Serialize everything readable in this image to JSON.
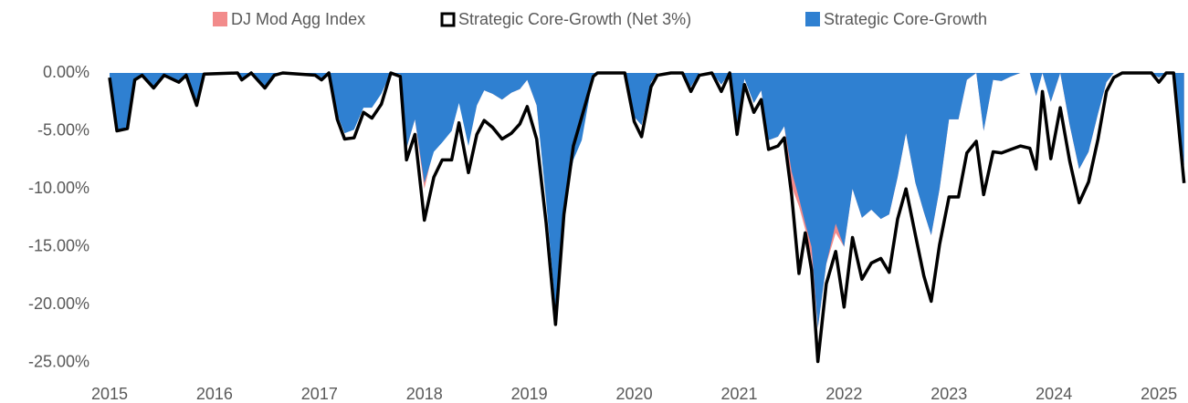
{
  "chart_data": {
    "type": "drawdown",
    "x": [
      2015.0,
      2015.07,
      2015.17,
      2015.24,
      2015.31,
      2015.42,
      2015.52,
      2015.66,
      2015.73,
      2015.83,
      2015.9,
      2016.22,
      2016.26,
      2016.35,
      2016.48,
      2016.57,
      2016.65,
      2016.96,
      2017.02,
      2017.09,
      2017.17,
      2017.24,
      2017.33,
      2017.42,
      2017.5,
      2017.59,
      2017.68,
      2017.77,
      2017.83,
      2017.91,
      2018.0,
      2018.09,
      2018.17,
      2018.26,
      2018.33,
      2018.42,
      2018.5,
      2018.57,
      2018.65,
      2018.74,
      2018.83,
      2018.91,
      2018.98,
      2019.07,
      2019.16,
      2019.25,
      2019.33,
      2019.42,
      2019.5,
      2019.61,
      2019.65,
      2019.91,
      2020.0,
      2020.07,
      2020.16,
      2020.22,
      2020.35,
      2020.46,
      2020.54,
      2020.62,
      2020.74,
      2020.83,
      2020.91,
      2020.98,
      2021.05,
      2021.14,
      2021.21,
      2021.28,
      2021.37,
      2021.43,
      2021.5,
      2021.57,
      2021.63,
      2021.69,
      2021.75,
      2021.83,
      2021.92,
      2022.0,
      2022.08,
      2022.17,
      2022.26,
      2022.35,
      2022.43,
      2022.51,
      2022.59,
      2022.68,
      2022.76,
      2022.83,
      2022.91,
      2023.0,
      2023.09,
      2023.17,
      2023.26,
      2023.33,
      2023.42,
      2023.5,
      2023.59,
      2023.68,
      2023.77,
      2023.83,
      2023.89,
      2023.97,
      2024.06,
      2024.15,
      2024.24,
      2024.33,
      2024.42,
      2024.5,
      2024.57,
      2024.65,
      2024.93,
      2025.0,
      2025.07,
      2025.14,
      2025.24
    ],
    "series": [
      {
        "name": "DJ Mod Agg Index",
        "color": "#f28b8b",
        "kind": "area",
        "values": [
          -0.4,
          -5.1,
          -4.8,
          -0.6,
          -0.1,
          -1.2,
          -0.1,
          -0.7,
          -0.1,
          -2.6,
          0,
          0,
          -0.5,
          0,
          -1.1,
          -0.1,
          0,
          -0.1,
          -0.4,
          0,
          -3.6,
          -5.0,
          -4.8,
          -2.7,
          -2.6,
          -1.5,
          0,
          -0.1,
          -6.5,
          -4.0,
          -10.0,
          -6.5,
          -5.8,
          -5.0,
          -2.5,
          -6.0,
          -2.8,
          -1.5,
          -1.8,
          -2.3,
          -1.7,
          -1.4,
          -0.6,
          -2.8,
          -10.5,
          -19.5,
          -11.0,
          -5.8,
          -3.0,
          -0.2,
          0,
          0,
          -3.8,
          -4.5,
          -0.8,
          0,
          0,
          0,
          -1.2,
          0,
          0,
          -1.0,
          0,
          -4.8,
          -0.5,
          -2.6,
          -1.5,
          -5.8,
          -5.5,
          -4.6,
          -9.8,
          -11.5,
          -13.5,
          -16.0,
          -22.0,
          -16.5,
          -13.8,
          -15.0,
          -10.0,
          -12.5,
          -11.8,
          -12.6,
          -12.2,
          -9.0,
          -5.2,
          -9.5,
          -12.0,
          -14.0,
          -10.0,
          -4.0,
          -4.0,
          -0.6,
          0,
          -5.0,
          -0.6,
          -0.7,
          -0.3,
          0,
          0,
          -2.0,
          0,
          -2.5,
          0,
          -4.5,
          -8.3,
          -6.8,
          -3.5,
          -0.8,
          0,
          0,
          0,
          -0.4,
          0,
          0,
          -8.0
        ]
      },
      {
        "name": "Strategic Core-Growth (Net 3%)",
        "color": "#000000",
        "kind": "line",
        "values": [
          -0.4,
          -5.0,
          -4.8,
          -0.6,
          -0.2,
          -1.3,
          -0.2,
          -0.8,
          -0.2,
          -2.8,
          -0.1,
          0,
          -0.6,
          0,
          -1.3,
          -0.2,
          0,
          -0.2,
          -0.6,
          0,
          -4.0,
          -5.7,
          -5.6,
          -3.4,
          -3.9,
          -2.7,
          0,
          -0.3,
          -7.5,
          -5.3,
          -12.7,
          -9.0,
          -7.5,
          -7.5,
          -4.3,
          -8.6,
          -5.3,
          -4.1,
          -4.7,
          -5.7,
          -5.2,
          -4.4,
          -2.9,
          -5.7,
          -12.9,
          -21.7,
          -12.2,
          -6.3,
          -3.8,
          -0.3,
          0,
          0,
          -4.2,
          -5.5,
          -1.2,
          -0.2,
          0,
          0,
          -1.6,
          -0.2,
          0,
          -1.6,
          0,
          -5.3,
          -1.0,
          -3.4,
          -2.3,
          -6.6,
          -6.3,
          -5.6,
          -10.5,
          -17.3,
          -13.8,
          -17.0,
          -24.9,
          -18.2,
          -15.4,
          -20.2,
          -14.2,
          -17.8,
          -16.4,
          -16.0,
          -17.2,
          -12.6,
          -10.0,
          -14.0,
          -17.5,
          -19.7,
          -14.8,
          -10.7,
          -10.7,
          -6.9,
          -5.9,
          -10.5,
          -6.8,
          -6.9,
          -6.6,
          -6.3,
          -6.5,
          -8.3,
          -1.6,
          -7.4,
          -3.0,
          -7.6,
          -11.2,
          -9.4,
          -5.7,
          -1.6,
          -0.4,
          0,
          0,
          -0.8,
          0,
          0,
          -9.5
        ]
      },
      {
        "name": "Strategic Core-Growth",
        "color": "#2f80d1",
        "kind": "area",
        "values": [
          -0.3,
          -5.0,
          -4.7,
          -0.5,
          -0.1,
          -1.2,
          -0.1,
          -0.7,
          -0.1,
          -2.6,
          0,
          0,
          -0.5,
          0,
          -1.1,
          -0.1,
          0,
          -0.1,
          -0.4,
          0,
          -3.6,
          -5.2,
          -4.9,
          -3.0,
          -3.0,
          -1.8,
          0,
          -0.1,
          -6.5,
          -4.0,
          -9.5,
          -6.8,
          -6.0,
          -5.0,
          -2.6,
          -6.3,
          -2.8,
          -1.5,
          -1.8,
          -2.3,
          -1.7,
          -1.4,
          -0.6,
          -2.8,
          -11.0,
          -20.5,
          -11.5,
          -7.5,
          -5.8,
          -0.2,
          0,
          0,
          -3.8,
          -4.5,
          -0.8,
          0,
          0,
          0,
          -1.2,
          0,
          0,
          -1.0,
          0,
          -4.8,
          -0.5,
          -2.6,
          -1.5,
          -5.8,
          -5.5,
          -4.6,
          -8.5,
          -10.8,
          -13.0,
          -15.0,
          -22.0,
          -16.5,
          -13.0,
          -15.0,
          -10.0,
          -12.5,
          -11.8,
          -12.6,
          -12.2,
          -9.0,
          -5.2,
          -9.5,
          -12.0,
          -14.0,
          -10.0,
          -4.0,
          -4.0,
          -0.6,
          0,
          -5.0,
          -0.6,
          -0.7,
          -0.3,
          0,
          0,
          -2.0,
          0,
          -2.5,
          0,
          -4.5,
          -8.3,
          -6.8,
          -3.5,
          -0.8,
          0,
          0,
          0,
          -0.4,
          0,
          0,
          -8.0
        ]
      }
    ],
    "xlim": [
      2015,
      2025.26
    ],
    "xticks": [
      2015,
      2016,
      2017,
      2018,
      2019,
      2020,
      2021,
      2022,
      2023,
      2024,
      2025
    ],
    "ylim": [
      -25.8,
      0
    ],
    "yticks": [
      {
        "value": 0,
        "label": "0.00%"
      },
      {
        "value": -5,
        "label": "-5.00%"
      },
      {
        "value": -10,
        "label": "-10.00%"
      },
      {
        "value": -15,
        "label": "-15.00%"
      },
      {
        "value": -20,
        "label": "-20.00%"
      },
      {
        "value": -25,
        "label": "-25.00%"
      }
    ],
    "legend": "top"
  }
}
